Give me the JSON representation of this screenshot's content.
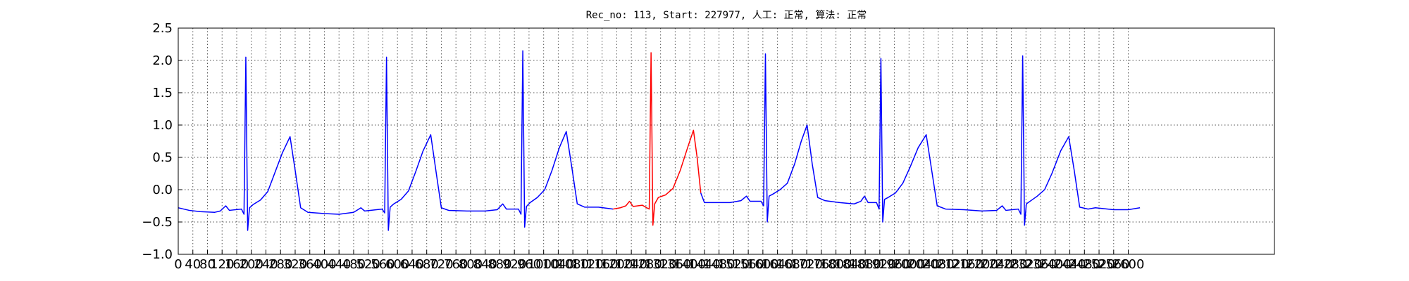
{
  "chart_data": {
    "type": "line",
    "title": "Rec_no: 113, Start: 227977, 人工: 正常, 算法: 正常",
    "xlim": [
      0,
      3000
    ],
    "ylim": [
      -1.0,
      2.5
    ],
    "xticks": [
      0,
      40,
      80,
      120,
      160,
      200,
      240,
      280,
      320,
      360,
      400,
      440,
      480,
      520,
      560,
      600,
      640,
      680,
      720,
      760,
      800,
      840,
      880,
      920,
      960,
      1000,
      1040,
      1080,
      1120,
      1160,
      1200,
      1240,
      1280,
      1320,
      1360,
      1400,
      1440,
      1480,
      1520,
      1560,
      1600,
      1640,
      1680,
      1720,
      1760,
      1800,
      1840,
      1880,
      1920,
      1960,
      2000,
      2040,
      2080,
      2120,
      2160,
      2200,
      2240,
      2280,
      2320,
      2360,
      2400,
      2440,
      2480,
      2520,
      2560,
      2600
    ],
    "yticks": [
      {
        "value": -1.0,
        "label": "−1.0"
      },
      {
        "value": -0.5,
        "label": "−0.5"
      },
      {
        "value": 0.0,
        "label": "0.0"
      },
      0.5,
      {
        "value": 1.0,
        "label": "1.0"
      },
      1.5,
      {
        "value": 2.0,
        "label": "2.0"
      },
      2.5
    ],
    "grid": true,
    "series": [
      {
        "color": "#0000ff",
        "x": [
          0,
          30,
          60,
          100,
          115,
          130,
          140,
          173,
          180,
          185,
          190,
          195,
          205,
          225,
          245,
          265,
          285,
          306,
          320,
          335,
          355,
          400,
          440,
          480,
          500,
          510,
          558,
          565,
          570,
          575,
          580,
          590,
          610,
          630,
          650,
          670,
          691,
          705,
          720,
          740,
          790,
          840,
          873,
          888,
          898,
          931,
          938,
          943,
          948,
          953,
          963,
          983,
          1003,
          1023,
          1043,
          1062,
          1077,
          1092,
          1112,
          1150,
          1190,
          1300,
          1430,
          1440,
          1470,
          1510,
          1540,
          1555,
          1565,
          1595,
          1602,
          1607,
          1612,
          1617,
          1627,
          1647,
          1667,
          1687,
          1705,
          1721,
          1735,
          1750,
          1770,
          1810,
          1850,
          1868,
          1878,
          1888,
          1911,
          1918,
          1923,
          1928,
          1933,
          1943,
          1963,
          1983,
          2003,
          2025,
          2047,
          2062,
          2077,
          2100,
          2150,
          2200,
          2240,
          2255,
          2265,
          2299,
          2306,
          2311,
          2316,
          2321,
          2331,
          2351,
          2371,
          2391,
          2415,
          2437,
          2452,
          2467,
          2490,
          2510,
          2560,
          2600,
          2632
        ],
        "values": [
          -0.28,
          -0.32,
          -0.34,
          -0.35,
          -0.33,
          -0.25,
          -0.32,
          -0.3,
          -0.38,
          2.05,
          -0.63,
          -0.28,
          -0.23,
          -0.16,
          -0.03,
          0.27,
          0.57,
          0.82,
          0.3,
          -0.28,
          -0.35,
          -0.37,
          -0.38,
          -0.35,
          -0.28,
          -0.33,
          -0.3,
          -0.36,
          2.05,
          -0.63,
          -0.27,
          -0.22,
          -0.15,
          -0.02,
          0.28,
          0.6,
          0.85,
          0.3,
          -0.28,
          -0.32,
          -0.33,
          -0.33,
          -0.31,
          -0.22,
          -0.3,
          -0.3,
          -0.38,
          2.15,
          -0.58,
          -0.26,
          -0.2,
          -0.12,
          0.0,
          0.3,
          0.65,
          0.9,
          0.35,
          -0.22,
          -0.27,
          -0.27,
          -0.3,
          null,
          -0.05,
          -0.2,
          -0.2,
          -0.2,
          -0.17,
          -0.1,
          -0.18,
          -0.18,
          -0.25,
          2.1,
          -0.5,
          -0.1,
          -0.07,
          0.0,
          0.1,
          0.4,
          0.75,
          1.0,
          0.4,
          -0.12,
          -0.17,
          -0.2,
          -0.22,
          -0.18,
          -0.1,
          -0.2,
          -0.2,
          -0.3,
          2.03,
          -0.5,
          -0.15,
          -0.12,
          -0.05,
          0.1,
          0.35,
          0.65,
          0.85,
          0.3,
          -0.25,
          -0.3,
          -0.31,
          -0.33,
          -0.32,
          -0.25,
          -0.32,
          -0.3,
          -0.38,
          2.07,
          -0.55,
          -0.22,
          -0.18,
          -0.1,
          0.0,
          0.25,
          0.6,
          0.82,
          0.3,
          -0.27,
          -0.3,
          -0.28,
          -0.31,
          -0.31,
          -0.28
        ]
      },
      {
        "color": "#ff0000",
        "x": [
          1190,
          1210,
          1225,
          1235,
          1245,
          1270,
          1282,
          1289,
          1294,
          1299,
          1304,
          1314,
          1334,
          1354,
          1374,
          1394,
          1410,
          1420,
          1430
        ],
        "values": [
          -0.3,
          -0.28,
          -0.25,
          -0.18,
          -0.26,
          -0.24,
          -0.28,
          -0.3,
          2.12,
          -0.55,
          -0.22,
          -0.12,
          -0.08,
          0.02,
          0.3,
          0.65,
          0.92,
          0.5,
          -0.05
        ]
      }
    ]
  }
}
